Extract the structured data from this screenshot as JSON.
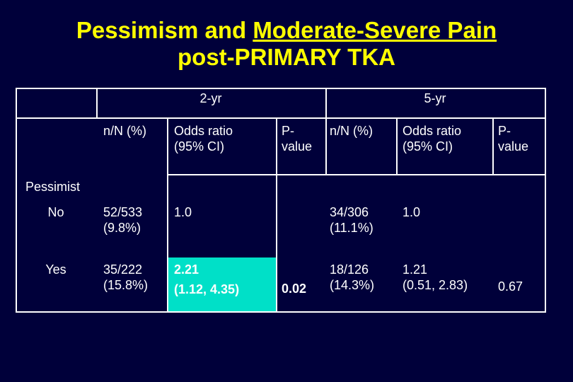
{
  "title": {
    "part1": "Pessimism and ",
    "part2_underlined": "Moderate-Severe Pain",
    "line2": "post-PRIMARY TKA"
  },
  "table": {
    "group_headers": [
      "2-yr",
      "5-yr"
    ],
    "sub_headers": {
      "nN_2yr": "n/N (%)",
      "or_2yr": "Odds ratio\n(95% CI)",
      "p_2yr": "P-\nvalue",
      "nN_5yr": "n/N (%)",
      "or_5yr": "Odds ratio\n(95% CI)",
      "p_5yr": "P-\nvalue"
    },
    "row_group_label": "Pessimist",
    "rows": [
      {
        "label": "No",
        "nN_2yr": "52/533\n(9.8%)",
        "or_2yr": "1.0",
        "p_2yr": "",
        "nN_5yr": "34/306\n(11.1%)",
        "or_5yr": "1.0",
        "p_5yr": ""
      },
      {
        "label": "Yes",
        "nN_2yr": "35/222\n(15.8%)",
        "or_2yr_line1": "2.21",
        "or_2yr_line2": "(1.12, 4.35)",
        "p_2yr": "0.02",
        "nN_5yr": "18/126\n(14.3%)",
        "or_5yr": "1.21\n(0.51, 2.83)",
        "p_5yr": "0.67"
      }
    ],
    "colors": {
      "background": "#00003a",
      "title": "#ffff00",
      "highlight": "#00e0c8",
      "text": "#ffffff"
    }
  }
}
